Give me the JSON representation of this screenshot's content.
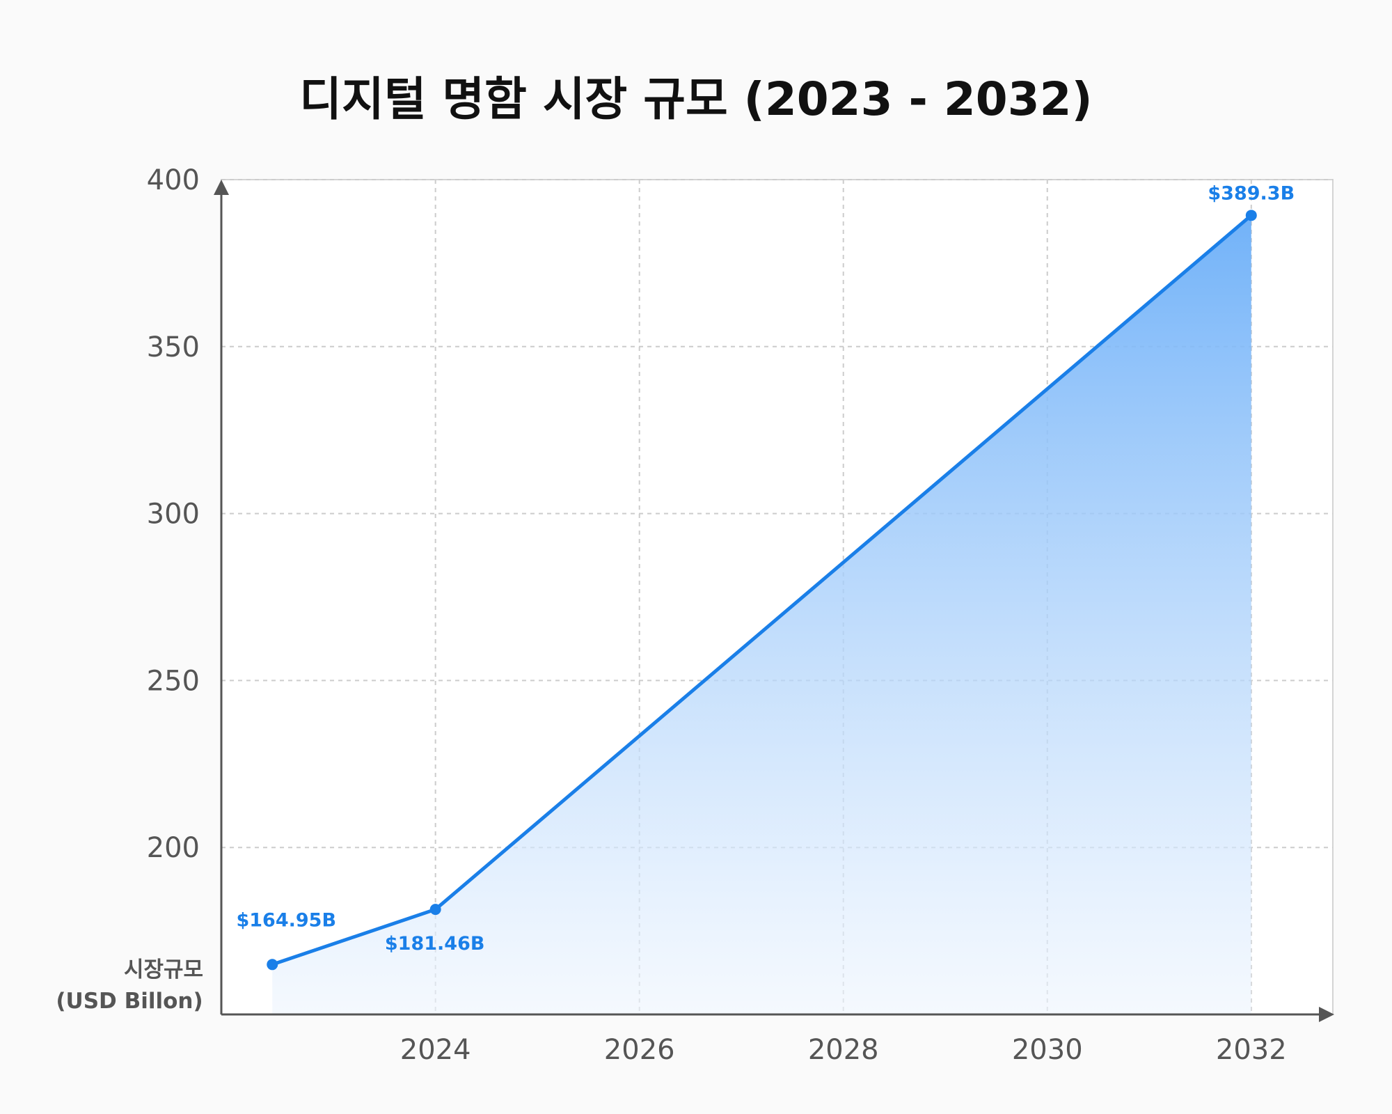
{
  "chart_data": {
    "type": "area",
    "title": "디지털 명함 시장 규모 (2023 - 2032)",
    "ylabel_lines": [
      "시장규모",
      "(USD Billon)"
    ],
    "xlabel": "",
    "x_ticks": [
      "2024",
      "2026",
      "2028",
      "2030",
      "2032"
    ],
    "x_tick_values": [
      2024,
      2026,
      2028,
      2030,
      2032
    ],
    "y_ticks": [
      "200",
      "250",
      "300",
      "350",
      "400"
    ],
    "y_tick_values": [
      200,
      250,
      300,
      350,
      400
    ],
    "xlim": [
      2021.9,
      2032.8
    ],
    "ylim": [
      150,
      400
    ],
    "grid": true,
    "series": [
      {
        "points": [
          {
            "x": 2022.4,
            "y": 164.95,
            "label": "$164.95B"
          },
          {
            "x": 2024,
            "y": 181.46,
            "label": "$181.46B"
          },
          {
            "x": 2032,
            "y": 389.3,
            "label": "$389.3B"
          }
        ]
      }
    ],
    "colors": {
      "line": "#1a7fe8",
      "fill_top": "#6aaef8",
      "fill_bottom": "#eef5fe",
      "label": "#1a7fe8",
      "axis": "#555555",
      "grid": "#cccccc",
      "background": "#fafafa"
    }
  }
}
